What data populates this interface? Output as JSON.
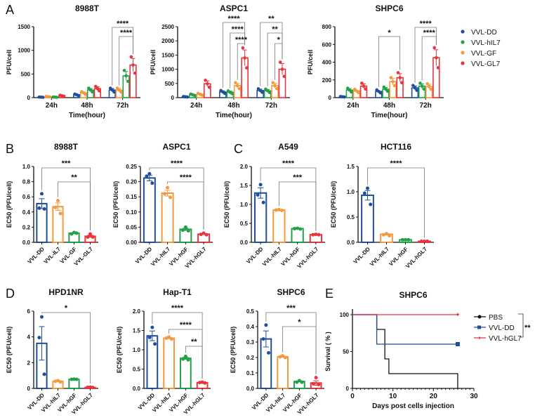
{
  "panel_labels": [
    "A",
    "B",
    "C",
    "D",
    "E"
  ],
  "colors": {
    "VVL-DD": "#1f4e9c",
    "VVL-hIL7": "#23a04a",
    "VVL-GF": "#f3993f",
    "VVL-GL7": "#e8343c",
    "PBS": "#111111"
  },
  "legend_A": [
    {
      "name": "VVL-DD",
      "color": "#1f4e9c"
    },
    {
      "name": "VVL-hIL7",
      "color": "#23a04a"
    },
    {
      "name": "VVL-GF",
      "color": "#f3993f"
    },
    {
      "name": "VVL-GL7",
      "color": "#e8343c"
    }
  ],
  "chart_data": [
    {
      "type": "bar",
      "panel": "A",
      "title": "8988T",
      "ylabel": "PFU/cell",
      "xlabel": "Time(hour)",
      "categories": [
        "24h",
        "48h",
        "72h"
      ],
      "ylim": [
        0,
        1500
      ],
      "yticks": [
        0,
        500,
        1000,
        1500
      ],
      "series": [
        {
          "name": "VVL-DD",
          "color": "#1f4e9c",
          "values": [
            10,
            60,
            160
          ]
        },
        {
          "name": "VVL-GF",
          "color": "#f3993f",
          "values": [
            20,
            100,
            160
          ]
        },
        {
          "name": "VVL-hIL7",
          "color": "#23a04a",
          "values": [
            10,
            160,
            460
          ]
        },
        {
          "name": "VVL-GL7",
          "color": "#e8343c",
          "values": [
            40,
            190,
            690
          ]
        }
      ],
      "significance": [
        {
          "group": 2,
          "from": 0,
          "to": 3,
          "label": "****"
        },
        {
          "group": 2,
          "from": 1,
          "to": 3,
          "label": "****"
        }
      ]
    },
    {
      "type": "bar",
      "panel": "A",
      "title": "ASPC1",
      "ylabel": "PFU/cell",
      "xlabel": "Time(hour)",
      "categories": [
        "24h",
        "48h",
        "72h"
      ],
      "ylim": [
        0,
        2500
      ],
      "yticks": [
        0,
        500,
        1000,
        1500,
        2000,
        2500
      ],
      "series": [
        {
          "name": "VVL-DD",
          "color": "#1f4e9c",
          "values": [
            30,
            200,
            250
          ]
        },
        {
          "name": "VVL-hIL7",
          "color": "#23a04a",
          "values": [
            100,
            190,
            240
          ]
        },
        {
          "name": "VVL-GF",
          "color": "#f3993f",
          "values": [
            120,
            420,
            420
          ]
        },
        {
          "name": "VVL-GL7",
          "color": "#e8343c",
          "values": [
            490,
            1400,
            1000
          ]
        }
      ],
      "significance": [
        {
          "group": 1,
          "from": 0,
          "to": 3,
          "label": "****"
        },
        {
          "group": 1,
          "from": 1,
          "to": 3,
          "label": "****"
        },
        {
          "group": 1,
          "from": 2,
          "to": 3,
          "label": "****"
        },
        {
          "group": 2,
          "from": 0,
          "to": 3,
          "label": "**"
        },
        {
          "group": 2,
          "from": 1,
          "to": 3,
          "label": "**"
        },
        {
          "group": 2,
          "from": 2,
          "to": 3,
          "label": "*"
        }
      ]
    },
    {
      "type": "bar",
      "panel": "A",
      "title": "SHPC6",
      "ylabel": "PFU/cell",
      "xlabel": "Time(hour)",
      "categories": [
        "24h",
        "48h",
        "72h"
      ],
      "ylim": [
        0,
        800
      ],
      "yticks": [
        0,
        200,
        400,
        600,
        800
      ],
      "series": [
        {
          "name": "VVL-DD",
          "color": "#1f4e9c",
          "values": [
            10,
            70,
            110
          ]
        },
        {
          "name": "VVL-hIL7",
          "color": "#23a04a",
          "values": [
            85,
            95,
            130
          ]
        },
        {
          "name": "VVL-GF",
          "color": "#f3993f",
          "values": [
            75,
            180,
            125
          ]
        },
        {
          "name": "VVL-GL7",
          "color": "#e8343c",
          "values": [
            130,
            225,
            450
          ]
        }
      ],
      "significance": [
        {
          "group": 1,
          "from": 0,
          "to": 3,
          "label": "*"
        },
        {
          "group": 2,
          "from": 0,
          "to": 3,
          "label": "****"
        },
        {
          "group": 2,
          "from": 1,
          "to": 3,
          "label": "****"
        }
      ]
    },
    {
      "type": "bar",
      "panel": "B",
      "title": "8988T",
      "ylabel": "EC50 (PFU/cell)",
      "categories": [
        "VVL-DD",
        "VVL-IL7",
        "VVL-GF",
        "VVL-GL7"
      ],
      "ylim": [
        0,
        1.0
      ],
      "yticks": [
        "0.0",
        "0.2",
        "0.4",
        "0.6",
        "0.8",
        "1.0"
      ],
      "colors": [
        "#1f4e9c",
        "#f3993f",
        "#23a04a",
        "#e8343c"
      ],
      "values": [
        0.51,
        0.47,
        0.12,
        0.08
      ],
      "points": [
        [
          0.64,
          0.45,
          0.44
        ],
        [
          0.55,
          0.46,
          0.38
        ],
        [
          0.13,
          0.11,
          0.12
        ],
        [
          0.11,
          0.07,
          0.07
        ]
      ],
      "significance": [
        {
          "from": 0,
          "to": 3,
          "label": "***"
        },
        {
          "from": 1,
          "to": 3,
          "label": "**"
        }
      ]
    },
    {
      "type": "bar",
      "panel": "B",
      "title": "ASPC1",
      "ylabel": "EC50 (PFU/cell)",
      "categories": [
        "VVL-DD",
        "VVL-hIL7",
        "VVL-hGF",
        "VVL-hGL7"
      ],
      "ylim": [
        0,
        0.25
      ],
      "yticks": [
        "0.00",
        "0.05",
        "0.10",
        "0.15",
        "0.20",
        "0.25"
      ],
      "colors": [
        "#1f4e9c",
        "#f3993f",
        "#23a04a",
        "#e8343c"
      ],
      "values": [
        0.212,
        0.162,
        0.043,
        0.027
      ],
      "points": [
        [
          0.226,
          0.218,
          0.195
        ],
        [
          0.18,
          0.16,
          0.148
        ],
        [
          0.05,
          0.04,
          0.038
        ],
        [
          0.03,
          0.026,
          0.025
        ]
      ],
      "significance": [
        {
          "from": 0,
          "to": 3,
          "label": "****"
        },
        {
          "from": 1,
          "to": 3,
          "label": "****"
        }
      ]
    },
    {
      "type": "bar",
      "panel": "C",
      "title": "A549",
      "ylabel": "EC50 (PFU/cell)",
      "categories": [
        "VVL-DD",
        "VVL-hIL7",
        "VVL-hGF",
        "VVL-hGL7"
      ],
      "ylim": [
        0,
        2.0
      ],
      "yticks": [
        "0.0",
        "0.5",
        "1.0",
        "1.5",
        "2.0"
      ],
      "colors": [
        "#1f4e9c",
        "#f3993f",
        "#23a04a",
        "#e8343c"
      ],
      "values": [
        1.3,
        0.85,
        0.36,
        0.2
      ],
      "points": [
        [
          1.52,
          1.25,
          1.05
        ],
        [
          0.86,
          0.85,
          0.84
        ],
        [
          0.37,
          0.36,
          0.35
        ],
        [
          0.21,
          0.2,
          0.2
        ]
      ],
      "significance": [
        {
          "from": 0,
          "to": 3,
          "label": "****"
        },
        {
          "from": 1,
          "to": 3,
          "label": "***"
        }
      ]
    },
    {
      "type": "bar",
      "panel": "C",
      "title": "HCT116",
      "ylabel": "EC50 (PFU/cell)",
      "categories": [
        "VVL-DD",
        "VVL-hIL7",
        "VVL-hGF",
        "VVL-hGL7"
      ],
      "ylim": [
        0,
        1.5
      ],
      "yticks": [
        "0.0",
        "0.5",
        "1.0",
        "1.5"
      ],
      "colors": [
        "#1f4e9c",
        "#f3993f",
        "#23a04a",
        "#e8343c"
      ],
      "values": [
        0.93,
        0.16,
        0.05,
        0.02
      ],
      "points": [
        [
          1.07,
          0.97,
          0.75
        ],
        [
          0.17,
          0.15,
          0.13
        ],
        [
          0.05,
          0.05,
          0.05
        ],
        [
          0.02,
          0.02,
          0.02
        ]
      ],
      "significance": [
        {
          "from": 0,
          "to": 3,
          "label": "****"
        }
      ]
    },
    {
      "type": "bar",
      "panel": "D",
      "title": "HPD1NR",
      "ylabel": "EC50 (PFU/cell)",
      "categories": [
        "VVL-DD",
        "VVL-hIL7",
        "VVL-hGF",
        "VVL-hGL7"
      ],
      "ylim": [
        0,
        6
      ],
      "yticks": [
        "0",
        "2",
        "4",
        "6"
      ],
      "colors": [
        "#1f4e9c",
        "#f3993f",
        "#23a04a",
        "#e8343c"
      ],
      "values": [
        3.5,
        0.55,
        0.7,
        0.08
      ],
      "points": [
        [
          5.55,
          3.95,
          1.1
        ],
        [
          0.6,
          0.55,
          0.5
        ],
        [
          0.72,
          0.7,
          0.7
        ],
        [
          0.1,
          0.08,
          0.07
        ]
      ],
      "significance": [
        {
          "from": 0,
          "to": 3,
          "label": "*"
        }
      ]
    },
    {
      "type": "bar",
      "panel": "D",
      "title": "Hap-T1",
      "ylabel": "EC50 (PFU/cell)",
      "categories": [
        "VVL-DD",
        "VVL-hIL7",
        "VVL-hGF",
        "VVL-hGL7"
      ],
      "ylim": [
        0,
        2.0
      ],
      "yticks": [
        "0.0",
        "0.5",
        "1.0",
        "1.5",
        "2.0"
      ],
      "colors": [
        "#1f4e9c",
        "#f3993f",
        "#23a04a",
        "#e8343c"
      ],
      "values": [
        1.36,
        1.3,
        0.78,
        0.15
      ],
      "points": [
        [
          1.58,
          1.32,
          1.15
        ],
        [
          1.33,
          1.3,
          1.28
        ],
        [
          0.83,
          0.76,
          0.74
        ],
        [
          0.16,
          0.15,
          0.14
        ]
      ],
      "significance": [
        {
          "from": 0,
          "to": 3,
          "label": "****"
        },
        {
          "from": 1,
          "to": 3,
          "label": "****"
        },
        {
          "from": 2,
          "to": 3,
          "label": "**"
        }
      ]
    },
    {
      "type": "bar",
      "panel": "D",
      "title": "SHPC6",
      "ylabel": "EC50 (PFU/cell)",
      "categories": [
        "VVL-DD",
        "VVL-hIL7",
        "VVL-hGF",
        "VVL-hGL7"
      ],
      "ylim": [
        0,
        0.5
      ],
      "yticks": [
        "0.0",
        "0.1",
        "0.2",
        "0.3",
        "0.4",
        "0.5"
      ],
      "colors": [
        "#1f4e9c",
        "#f3993f",
        "#23a04a",
        "#e8343c"
      ],
      "values": [
        0.32,
        0.205,
        0.045,
        0.035
      ],
      "points": [
        [
          0.41,
          0.32,
          0.23
        ],
        [
          0.21,
          0.205,
          0.2
        ],
        [
          0.05,
          0.04,
          0.04
        ],
        [
          0.07,
          0.03,
          0.025
        ]
      ],
      "significance": [
        {
          "from": 0,
          "to": 3,
          "label": "***"
        },
        {
          "from": 1,
          "to": 3,
          "label": "*"
        }
      ]
    },
    {
      "type": "line",
      "panel": "E",
      "title": "SHPC6",
      "ylabel": "Survival ( % )",
      "xlabel": "Days post cells injection",
      "xlim": [
        0,
        30
      ],
      "xticks": [
        0,
        10,
        20,
        30
      ],
      "ylim": [
        0,
        100
      ],
      "yticks": [
        0,
        50,
        100
      ],
      "series": [
        {
          "name": "PBS",
          "color": "#111111",
          "marker": "circle",
          "x": [
            0,
            6,
            8,
            9,
            26
          ],
          "y": [
            100,
            80,
            40,
            20,
            0
          ]
        },
        {
          "name": "VVL-DD",
          "color": "#1f4e9c",
          "marker": "square",
          "x": [
            0,
            6,
            26
          ],
          "y": [
            100,
            60,
            60
          ]
        },
        {
          "name": "VVL-hGL7",
          "color": "#e8343c",
          "marker": "plus",
          "x": [
            0,
            26
          ],
          "y": [
            100,
            100
          ]
        }
      ],
      "significance": {
        "label": "**"
      },
      "legend": "right"
    }
  ]
}
